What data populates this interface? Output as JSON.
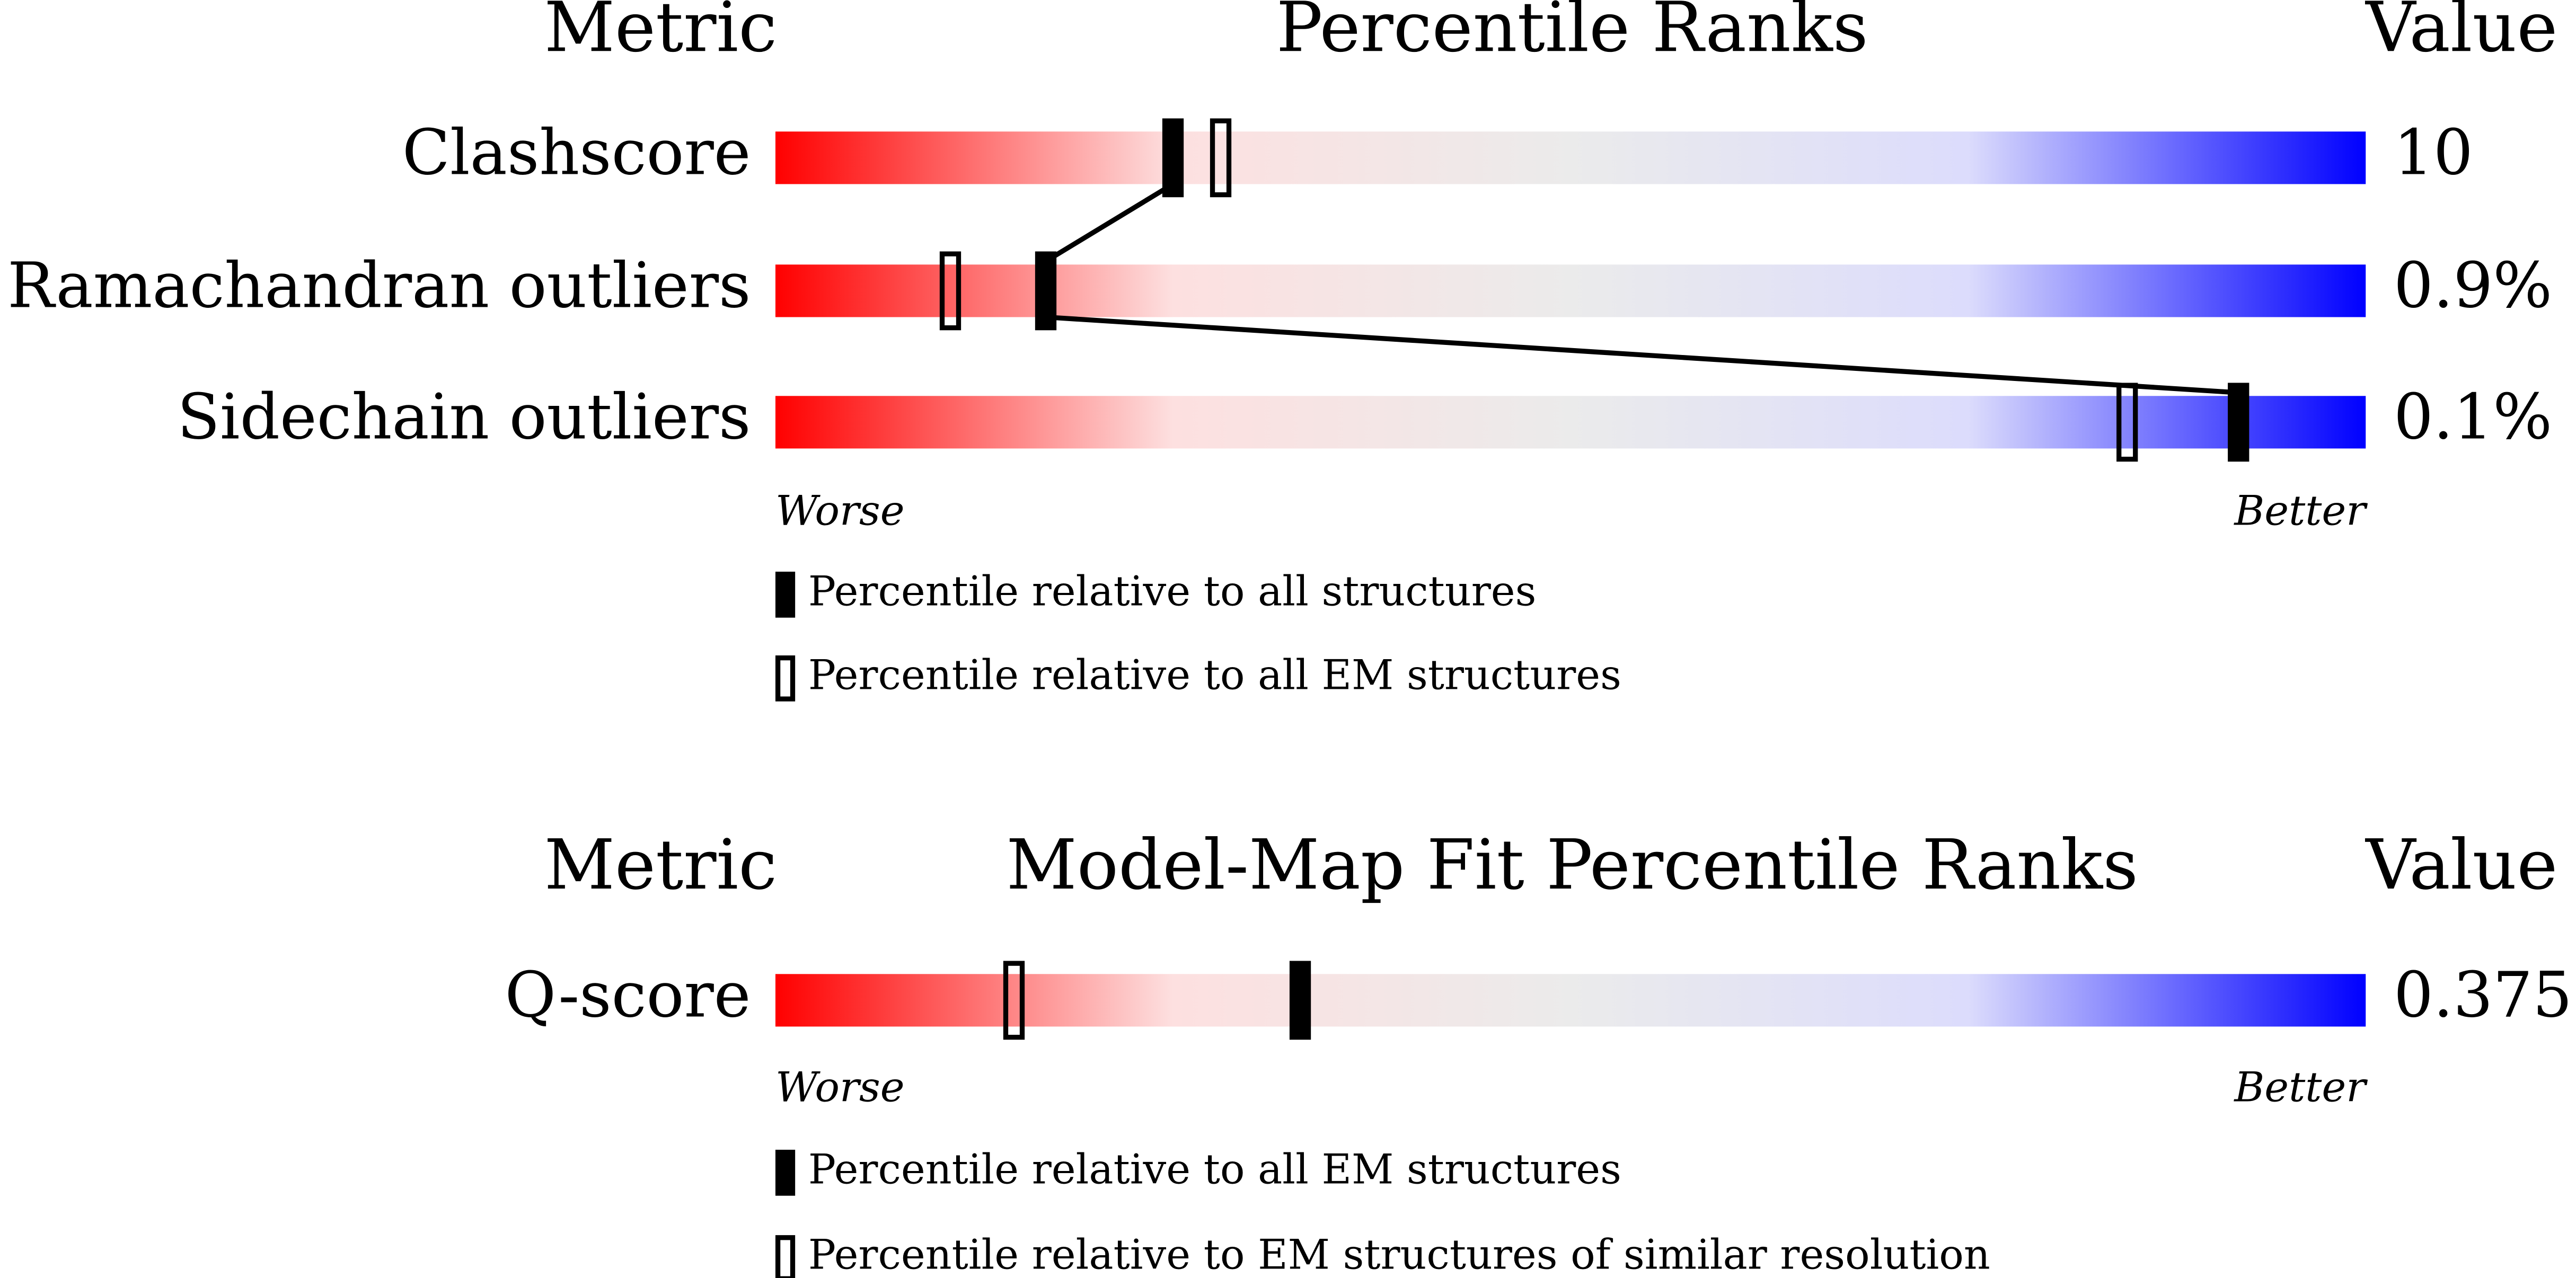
{
  "chart_data": [
    {
      "type": "percentile-slider",
      "header": {
        "metric": "Metric",
        "title": "Percentile Ranks",
        "value": "Value"
      },
      "categories": [
        "Clashscore",
        "Ramachandran outliers",
        "Sidechain outliers"
      ],
      "metric_values": [
        "10",
        "0.9%",
        "0.1%"
      ],
      "series": [
        {
          "name": "Percentile relative to all structures",
          "marker": "filled",
          "color": "#000000",
          "values": [
            25,
            17,
            92
          ]
        },
        {
          "name": "Percentile relative to all EM structures",
          "marker": "open",
          "color": "#000000",
          "values": [
            28,
            11,
            85
          ]
        }
      ],
      "xlim": [
        0,
        100
      ],
      "worse": "Worse",
      "better": "Better",
      "connect": true,
      "gradient": [
        "#ff0000",
        "#fde0e0",
        "#ebebeb",
        "#dcdcfc",
        "#0000ff"
      ]
    },
    {
      "type": "percentile-slider",
      "header": {
        "metric": "Metric",
        "title": "Model-Map Fit Percentile Ranks",
        "value": "Value"
      },
      "categories": [
        "Q-score"
      ],
      "metric_values": [
        "0.375"
      ],
      "series": [
        {
          "name": "Percentile relative to all EM structures",
          "marker": "filled",
          "color": "#000000",
          "values": [
            33
          ]
        },
        {
          "name": "Percentile relative to EM structures of similar resolution",
          "marker": "open",
          "color": "#000000",
          "values": [
            15
          ]
        }
      ],
      "xlim": [
        0,
        100
      ],
      "worse": "Worse",
      "better": "Better",
      "connect": false,
      "gradient": [
        "#ff0000",
        "#fde0e0",
        "#ebebeb",
        "#dcdcfc",
        "#0000ff"
      ]
    }
  ]
}
